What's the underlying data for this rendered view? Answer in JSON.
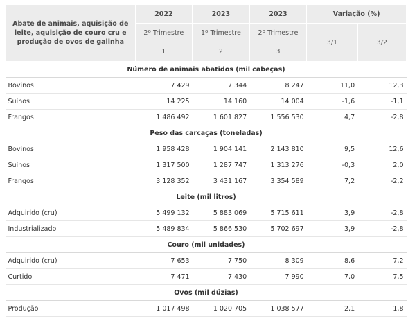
{
  "header": {
    "corner": "Abate de animais, aquisição de leite, aquisição de couro cru e produção de ovos de galinha",
    "years": [
      "2022",
      "2023",
      "2023"
    ],
    "variation": "Variação (%)",
    "quarters": [
      "2º Trimestre",
      "1º Trimestre",
      "2º Trimestre"
    ],
    "indices": [
      "1",
      "2",
      "3"
    ],
    "ratios": [
      "3/1",
      "3/2"
    ]
  },
  "sections": [
    {
      "title": "Número de animais abatidos (mil cabeças)",
      "rows": [
        {
          "label": "Bovinos",
          "v1": "7 429",
          "v2": "7 344",
          "v3": "8 247",
          "r1": "11,0",
          "r2": "12,3"
        },
        {
          "label": "Suínos",
          "v1": "14 225",
          "v2": "14 160",
          "v3": "14 004",
          "r1": "-1,6",
          "r2": "-1,1"
        },
        {
          "label": "Frangos",
          "v1": "1 486 492",
          "v2": "1 601 827",
          "v3": "1 556 530",
          "r1": "4,7",
          "r2": "-2,8"
        }
      ]
    },
    {
      "title": "Peso das carcaças (toneladas)",
      "rows": [
        {
          "label": "Bovinos",
          "v1": "1 958 428",
          "v2": "1 904 141",
          "v3": "2 143 810",
          "r1": "9,5",
          "r2": "12,6"
        },
        {
          "label": "Suínos",
          "v1": "1 317 500",
          "v2": "1 287 747",
          "v3": "1 313 276",
          "r1": "-0,3",
          "r2": "2,0"
        },
        {
          "label": "Frangos",
          "v1": "3 128 352",
          "v2": "3 431 167",
          "v3": "3 354 589",
          "r1": "7,2",
          "r2": "-2,2"
        }
      ]
    },
    {
      "title": "Leite (mil litros)",
      "rows": [
        {
          "label": "Adquirido (cru)",
          "v1": "5 499 132",
          "v2": "5 883 069",
          "v3": "5 715 611",
          "r1": "3,9",
          "r2": "-2,8"
        },
        {
          "label": "Industrializado",
          "v1": "5 489 834",
          "v2": "5 866 530",
          "v3": "5 702 697",
          "r1": "3,9",
          "r2": "-2,8"
        }
      ]
    },
    {
      "title": "Couro (mil unidades)",
      "rows": [
        {
          "label": "Adquirido (cru)",
          "v1": "7 653",
          "v2": "7 750",
          "v3": "8 309",
          "r1": "8,6",
          "r2": "7,2"
        },
        {
          "label": "Curtido",
          "v1": "7 471",
          "v2": "7 430",
          "v3": "7 990",
          "r1": "7,0",
          "r2": "7,5"
        }
      ]
    },
    {
      "title": "Ovos (mil dúzias)",
      "rows": [
        {
          "label": "Produção",
          "v1": "1 017 498",
          "v2": "1 020 705",
          "v3": "1 038 577",
          "r1": "2,1",
          "r2": "1,8"
        }
      ]
    }
  ]
}
